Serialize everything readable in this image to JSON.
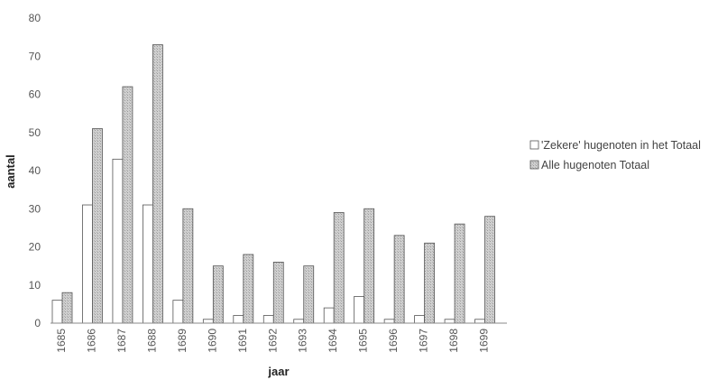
{
  "chart_data": {
    "type": "bar",
    "categories": [
      "1685",
      "1686",
      "1687",
      "1688",
      "1689",
      "1690",
      "1691",
      "1692",
      "1693",
      "1694",
      "1695",
      "1696",
      "1697",
      "1698",
      "1699"
    ],
    "series": [
      {
        "name": "'Zekere'  hugenoten in het Totaal",
        "values": [
          6,
          31,
          43,
          31,
          6,
          1,
          2,
          2,
          1,
          4,
          7,
          1,
          2,
          1,
          1
        ],
        "color": "#ffffff"
      },
      {
        "name": "Alle hugenoten Totaal",
        "values": [
          8,
          51,
          62,
          73,
          30,
          15,
          18,
          16,
          15,
          29,
          30,
          23,
          21,
          26,
          28
        ],
        "color": "#c8c8c8"
      }
    ],
    "xlabel": "jaar",
    "ylabel": "aantal",
    "ylim": [
      0,
      80
    ],
    "yticks": [
      0,
      10,
      20,
      30,
      40,
      50,
      60,
      70,
      80
    ],
    "grid": false,
    "legend_position": "right"
  }
}
